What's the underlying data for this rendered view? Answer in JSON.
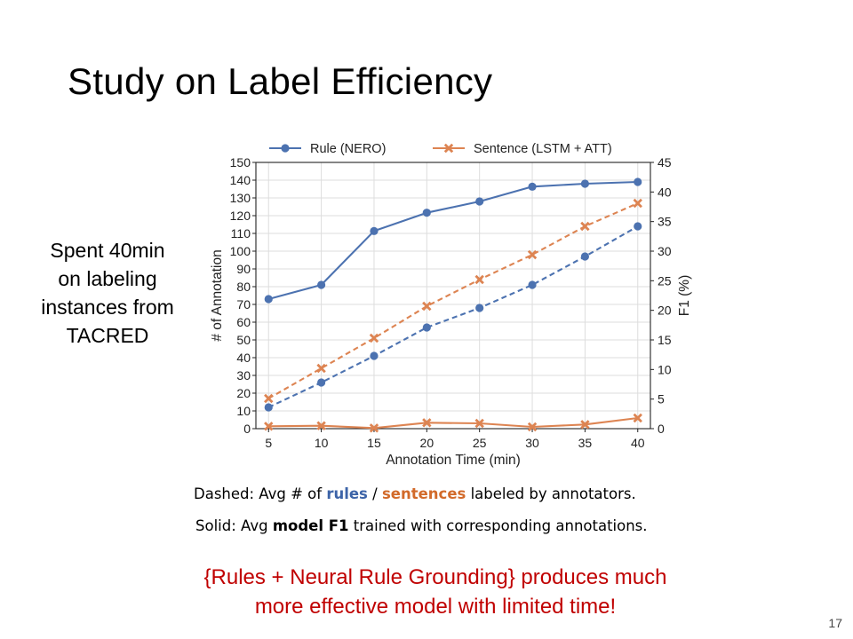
{
  "slide": {
    "title": "Study on Label Efficiency",
    "side_note": [
      "Spent 40min",
      "on labeling",
      "instances from",
      "TACRED"
    ],
    "caption1": {
      "prefix": "Dashed: Avg # of ",
      "rules": "rules",
      "sep": " / ",
      "sentences": "sentences",
      "suffix": " labeled by annotators."
    },
    "caption2": {
      "prefix": "Solid: Avg ",
      "bold": "model F1",
      "suffix": " trained with corresponding annotations."
    },
    "conclusion": [
      "{Rules + Neural Rule Grounding} produces much",
      "more effective model with limited time!"
    ],
    "page_number": "17"
  },
  "colors": {
    "rule": "#4c72b0",
    "sentence": "#dd8452",
    "conclusion": "#c00000"
  },
  "chart_data": {
    "type": "line",
    "x": [
      5,
      10,
      15,
      20,
      25,
      30,
      35,
      40
    ],
    "xlabel": "Annotation Time (min)",
    "ylabel_left": "# of Annotation",
    "ylabel_right": "F1 (%)",
    "ylim_left": [
      0,
      150
    ],
    "ylim_right": [
      0,
      45
    ],
    "yticks_left": [
      0,
      10,
      20,
      30,
      40,
      50,
      60,
      70,
      80,
      90,
      100,
      110,
      120,
      130,
      140,
      150
    ],
    "yticks_right": [
      0,
      5,
      10,
      15,
      20,
      25,
      30,
      35,
      40,
      45
    ],
    "grid": true,
    "legend": "top",
    "series": [
      {
        "name": "Rule (NERO)",
        "kind": "f1",
        "axis": "right",
        "style": "solid",
        "marker": "circle",
        "color": "#4c72b0",
        "values": [
          21.9,
          24.3,
          33.4,
          36.5,
          38.4,
          40.9,
          41.4,
          41.7
        ]
      },
      {
        "name": "Sentence (LSTM + ATT)",
        "kind": "f1",
        "axis": "right",
        "style": "solid",
        "marker": "x",
        "color": "#dd8452",
        "values": [
          0.4,
          0.5,
          0.1,
          1.0,
          0.9,
          0.3,
          0.7,
          1.8
        ]
      },
      {
        "name": "Rule (NERO)",
        "kind": "annotations",
        "axis": "left",
        "style": "dashed",
        "marker": "circle",
        "color": "#4c72b0",
        "values": [
          12,
          26,
          41,
          57,
          68,
          81,
          97,
          114
        ]
      },
      {
        "name": "Sentence (LSTM + ATT)",
        "kind": "annotations",
        "axis": "left",
        "style": "dashed",
        "marker": "x",
        "color": "#dd8452",
        "values": [
          17,
          34,
          51,
          69,
          84,
          98,
          114,
          127
        ]
      }
    ]
  }
}
